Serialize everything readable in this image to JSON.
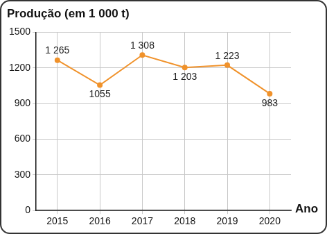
{
  "chart_data": {
    "type": "line",
    "title": "Produção (em 1 000 t)",
    "xlabel": "Ano",
    "categories": [
      "2015",
      "2016",
      "2017",
      "2018",
      "2019",
      "2020"
    ],
    "values": [
      1265,
      1055,
      1308,
      1203,
      1223,
      983
    ],
    "value_labels": [
      "1 265",
      "1055",
      "1 308",
      "1 203",
      "1 223",
      "983"
    ],
    "color": "#f0922b",
    "marker": "circle",
    "line_style": "solid",
    "ylim": [
      0,
      1500
    ],
    "yticks": [
      0,
      300,
      600,
      900,
      1200,
      1500
    ],
    "grid": true,
    "data_labels": true
  }
}
